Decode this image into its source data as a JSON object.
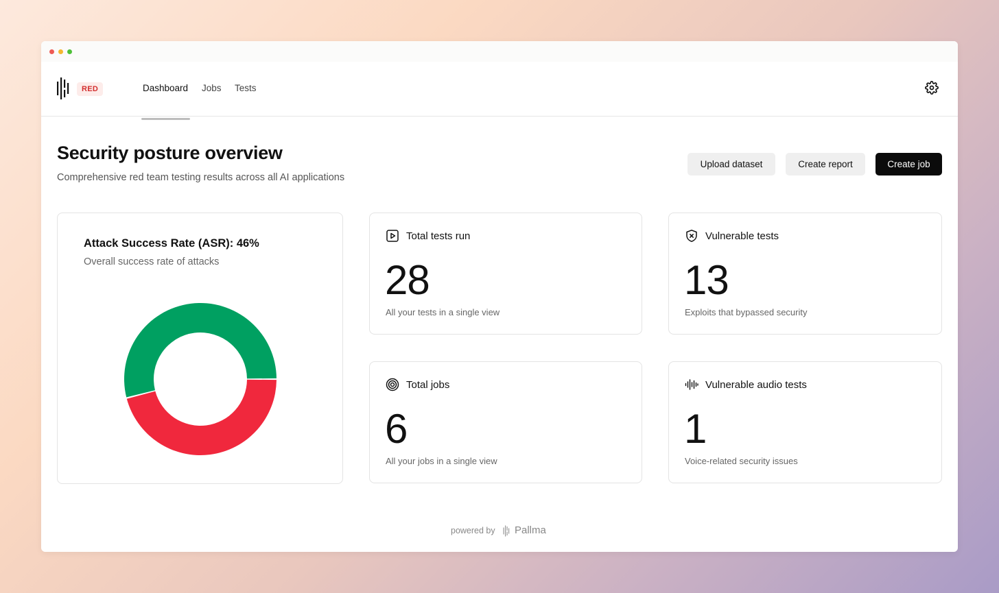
{
  "colors": {
    "window_close": "#ee5a54",
    "window_minimize": "#f4b731",
    "window_maximize": "#4ec038",
    "badge_text": "#d32f2f",
    "asr_success": "#f0283d",
    "asr_fail": "#00a061"
  },
  "nav": {
    "badge": "RED",
    "tabs": [
      {
        "label": "Dashboard",
        "active": true
      },
      {
        "label": "Jobs",
        "active": false
      },
      {
        "label": "Tests",
        "active": false
      }
    ],
    "settings_icon": "gear-icon"
  },
  "page": {
    "title": "Security posture overview",
    "subtitle": "Comprehensive red team testing results across all AI applications"
  },
  "actions": {
    "upload": "Upload dataset",
    "report": "Create report",
    "create_job": "Create job"
  },
  "asr": {
    "title": "Attack Success Rate (ASR): 46%",
    "subtitle": "Overall success rate of attacks"
  },
  "chart_data": {
    "type": "pie",
    "title": "Attack Success Rate (ASR): 46%",
    "slices": [
      {
        "value": 46,
        "color": "#f0283d"
      },
      {
        "value": 54,
        "color": "#00a061"
      }
    ]
  },
  "stats": [
    {
      "label": "Total tests run",
      "value": "28",
      "desc": "All your tests in a single view",
      "icon": "play-icon"
    },
    {
      "label": "Vulnerable tests",
      "value": "13",
      "desc": "Exploits that bypassed security",
      "icon": "shield-x-icon"
    },
    {
      "label": "Total jobs",
      "value": "6",
      "desc": "All your jobs in a single view",
      "icon": "target-icon"
    },
    {
      "label": "Vulnerable audio tests",
      "value": "1",
      "desc": "Voice-related security issues",
      "icon": "audio-wave-icon"
    }
  ],
  "footer": {
    "powered_by": "powered by",
    "brand": "Pallma"
  }
}
